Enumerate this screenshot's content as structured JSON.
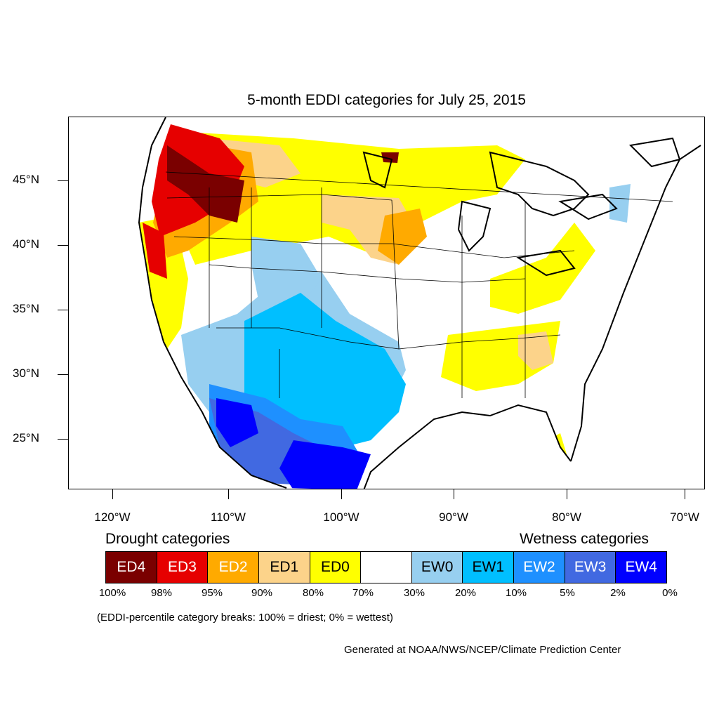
{
  "title": "5-month EDDI categories for July 25, 2015",
  "lat_labels": [
    "45°N",
    "40°N",
    "35°N",
    "30°N",
    "25°N"
  ],
  "lon_labels": [
    "120°W",
    "110°W",
    "100°W",
    "90°W",
    "80°W",
    "70°W"
  ],
  "legend": {
    "drought_heading": "Drought categories",
    "wetness_heading": "Wetness categories",
    "boxes": [
      {
        "label": "ED4",
        "color": "#7a0000",
        "text_color": "#ffffff"
      },
      {
        "label": "ED3",
        "color": "#e60000",
        "text_color": "#ffffff"
      },
      {
        "label": "ED2",
        "color": "#ffaa00",
        "text_color": "#ffffff"
      },
      {
        "label": "ED1",
        "color": "#fcd38a",
        "text_color": "#000000"
      },
      {
        "label": "ED0",
        "color": "#ffff00",
        "text_color": "#000000"
      },
      {
        "label": "",
        "color": "#ffffff",
        "text_color": "#000000"
      },
      {
        "label": "EW0",
        "color": "#97cff0",
        "text_color": "#000000"
      },
      {
        "label": "EW1",
        "color": "#00bfff",
        "text_color": "#000000"
      },
      {
        "label": "EW2",
        "color": "#1e90ff",
        "text_color": "#ffffff"
      },
      {
        "label": "EW3",
        "color": "#4169e1",
        "text_color": "#ffffff"
      },
      {
        "label": "EW4",
        "color": "#0000ff",
        "text_color": "#ffffff"
      }
    ],
    "breaks": [
      "100%",
      "98%",
      "95%",
      "90%",
      "80%",
      "70%",
      "30%",
      "20%",
      "10%",
      "5%",
      "2%",
      "0%"
    ]
  },
  "note": "(EDDI-percentile category breaks: 100% = driest; 0% = wettest)",
  "credit": "Generated at NOAA/NWS/NCEP/Climate Prediction Center"
}
